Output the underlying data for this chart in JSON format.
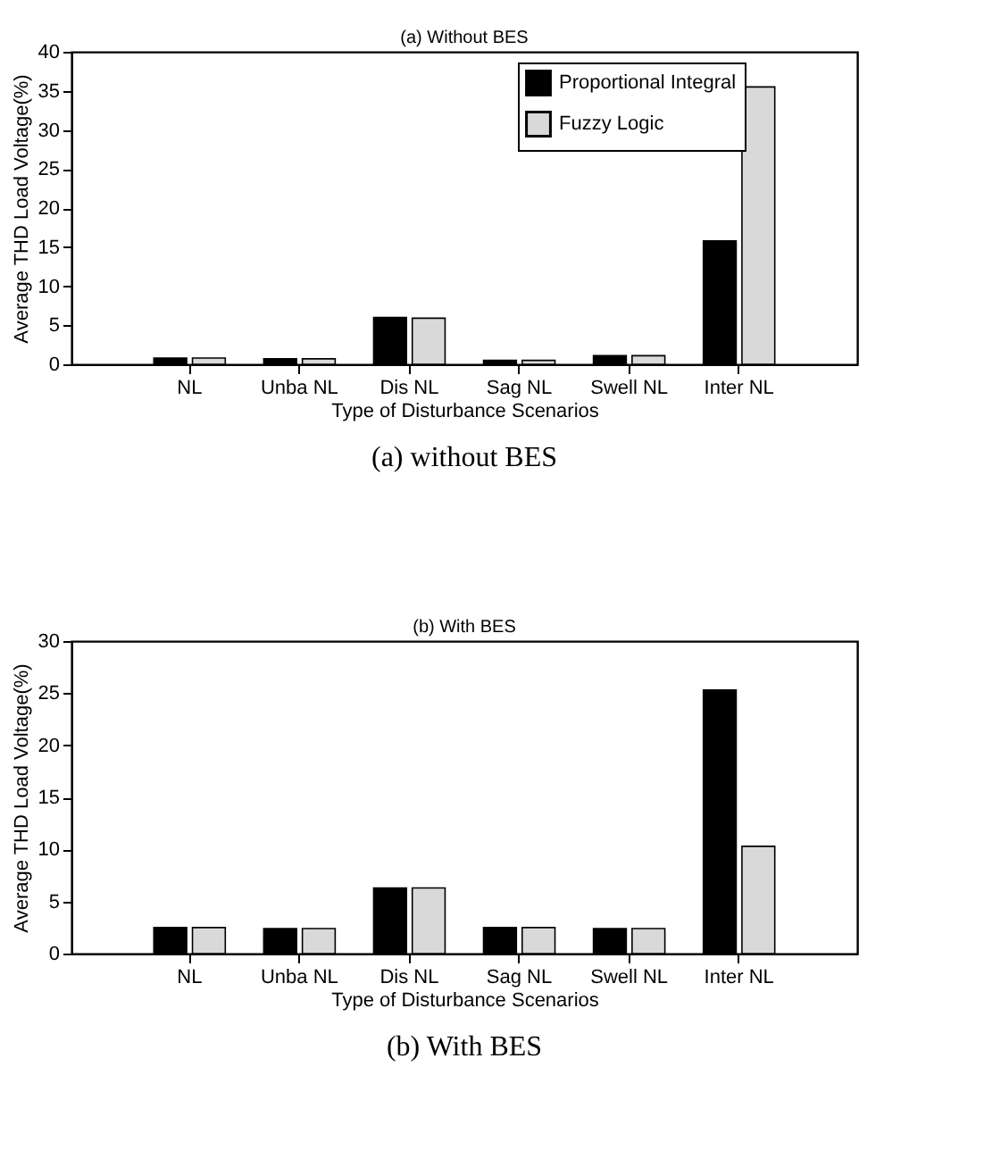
{
  "chart_data": [
    {
      "type": "bar",
      "title": "(a) Without BES",
      "xlabel": "Type of Disturbance Scenarios",
      "ylabel": "Average THD Load Voltage(%)",
      "annotations": [
        "(a) without BES"
      ],
      "categories": [
        "NL",
        "Unba NL",
        "Dis NL",
        "Sag NL",
        "Swell NL",
        "Inter NL"
      ],
      "series": [
        {
          "name": "Proportional Integral",
          "color": "#000000",
          "values": [
            0.8,
            0.7,
            6.0,
            0.5,
            1.1,
            15.8
          ]
        },
        {
          "name": "Fuzzy Logic",
          "color": "#d9d9d9",
          "values": [
            0.8,
            0.7,
            5.9,
            0.5,
            1.1,
            35.5
          ]
        }
      ],
      "ylim": [
        0,
        40
      ],
      "yticks": [
        0,
        5,
        10,
        15,
        20,
        25,
        30,
        35,
        40
      ],
      "grid": false,
      "legend": "top right"
    },
    {
      "type": "bar",
      "title": "(b) With BES",
      "xlabel": "Type of Disturbance Scenarios",
      "ylabel": "Average THD Load Voltage(%)",
      "annotations": [
        "(b) With BES"
      ],
      "categories": [
        "NL",
        "Unba NL",
        "Dis NL",
        "Sag NL",
        "Swell NL",
        "Inter NL"
      ],
      "series": [
        {
          "name": "Proportional Integral",
          "color": "#000000",
          "values": [
            2.5,
            2.4,
            6.3,
            2.5,
            2.4,
            25.3
          ]
        },
        {
          "name": "Fuzzy Logic",
          "color": "#d9d9d9",
          "values": [
            2.5,
            2.4,
            6.3,
            2.5,
            2.4,
            10.3
          ]
        }
      ],
      "ylim": [
        0,
        30
      ],
      "yticks": [
        0,
        5,
        10,
        15,
        20,
        25,
        30
      ],
      "grid": false,
      "legend": "top right"
    }
  ]
}
